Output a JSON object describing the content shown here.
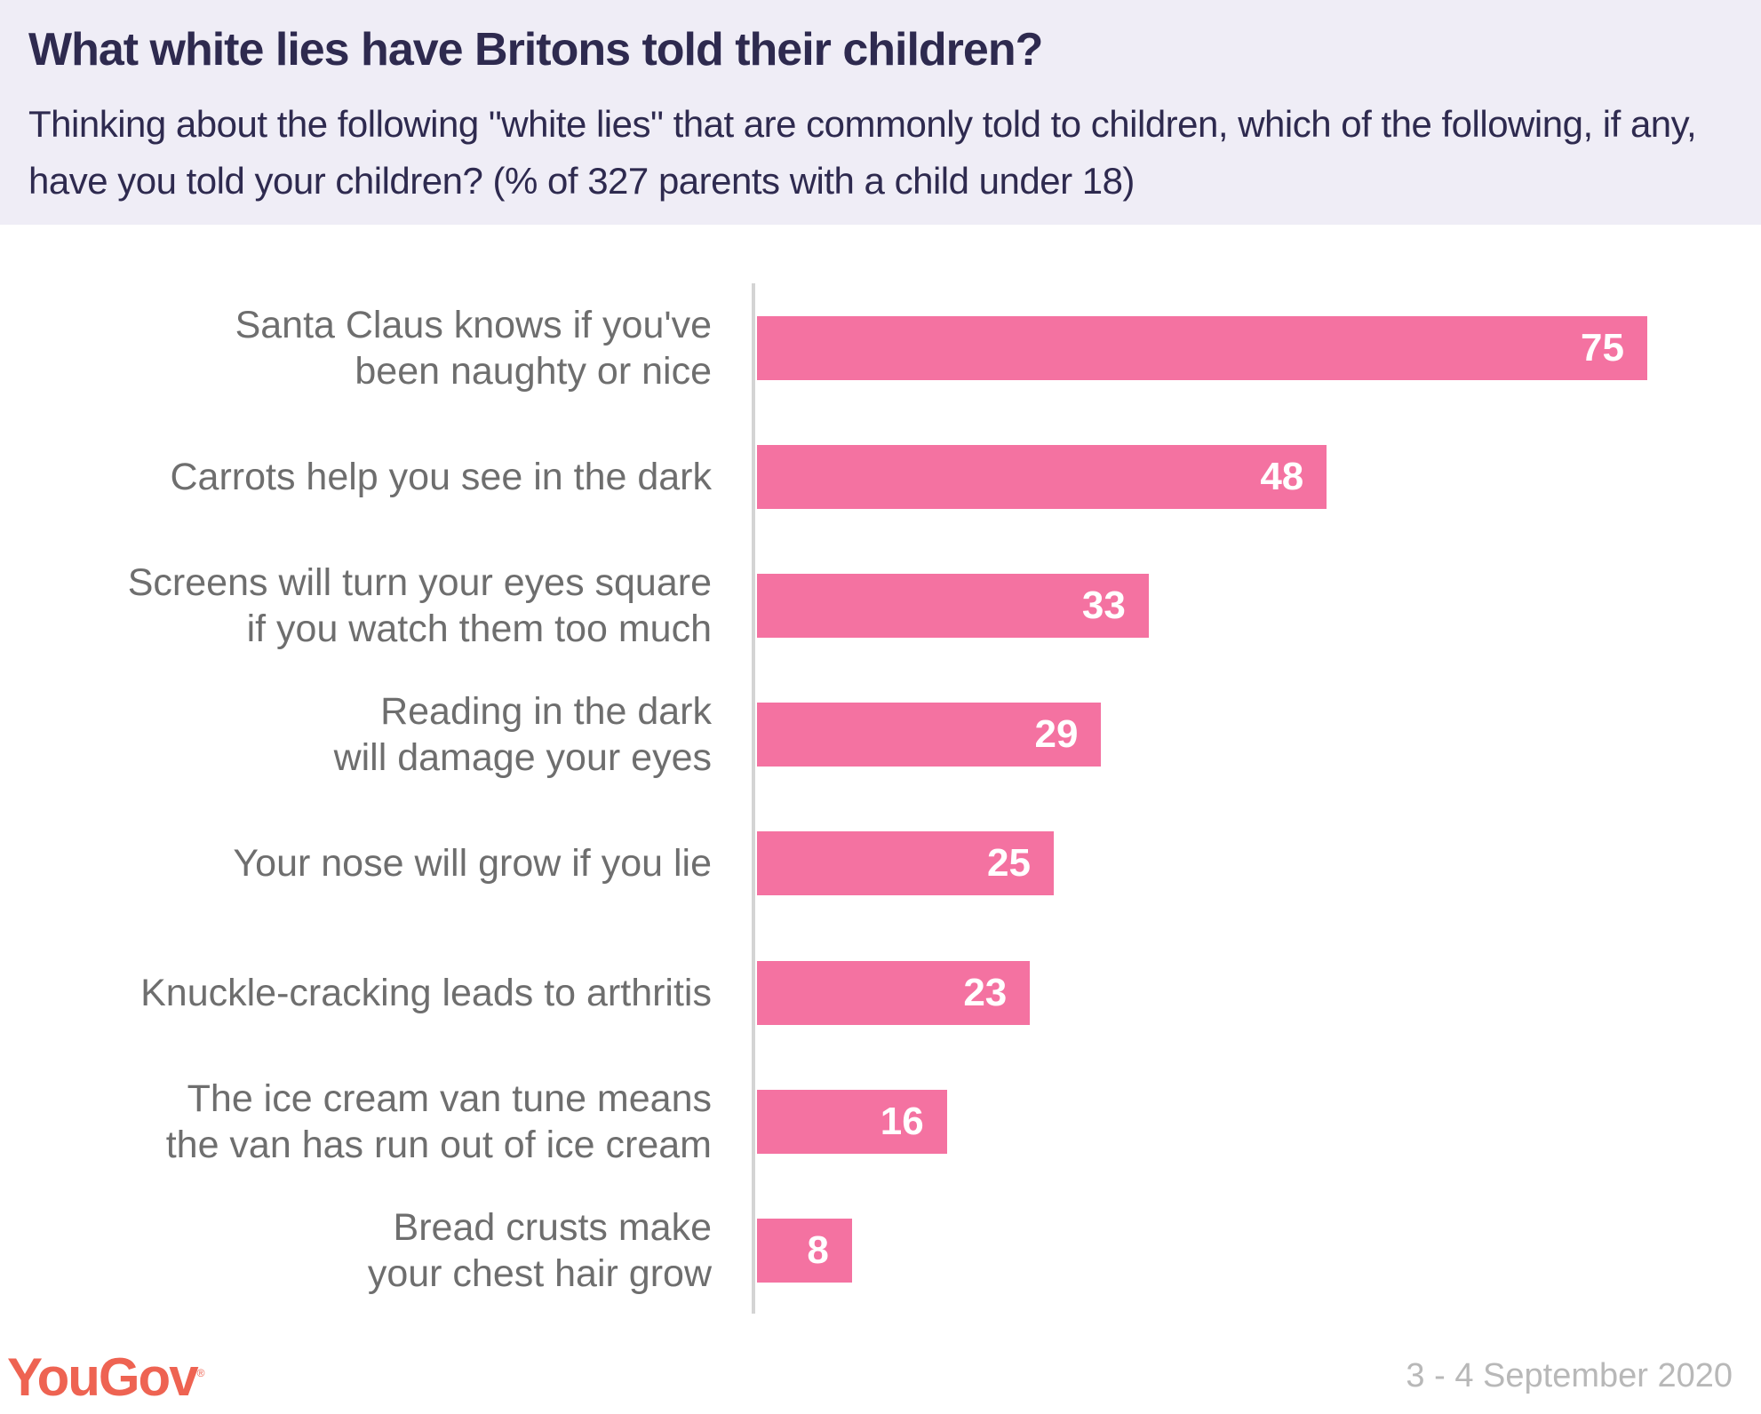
{
  "chart_data": {
    "type": "bar",
    "orientation": "horizontal",
    "title": "What white lies have Britons told their children?",
    "subtitle": "Thinking about the following \"white lies\" that are commonly told to children, which of the following, if any, have you told your children? (% of 327 parents with a child under 18)",
    "categories": [
      [
        "Santa Claus knows if you've",
        "been naughty or nice"
      ],
      [
        "Carrots help you see in the dark"
      ],
      [
        "Screens will turn your eyes square",
        "if you watch them too much"
      ],
      [
        "Reading in the dark",
        "will damage your eyes"
      ],
      [
        "Your nose will grow if you lie"
      ],
      [
        "Knuckle-cracking leads to arthritis"
      ],
      [
        "The ice cream van tune means",
        "the van has run out of ice cream"
      ],
      [
        "Bread crusts make",
        "your chest hair grow"
      ]
    ],
    "values": [
      75,
      48,
      33,
      29,
      25,
      23,
      16,
      8
    ],
    "xlim": [
      0,
      75
    ],
    "grid": false,
    "bar_color": "#f472a1"
  },
  "footer": {
    "logo": "YouGov",
    "date": "3 - 4 September 2020"
  },
  "colors": {
    "title": "#2e2a4f",
    "header_bg": "#efedf6",
    "logo": "#ee6352"
  }
}
